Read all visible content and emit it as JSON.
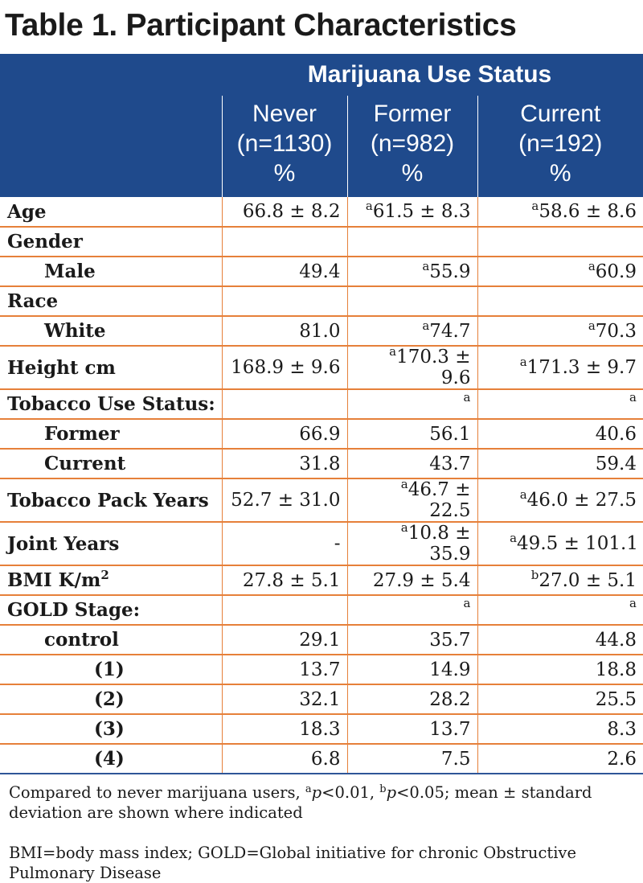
{
  "title": "Table 1. Participant Characteristics",
  "header": {
    "group": "Marijuana Use Status",
    "columns": [
      {
        "name": "Never",
        "n": "(n=1130)",
        "unit": "%"
      },
      {
        "name": "Former",
        "n": "(n=982)",
        "unit": "%"
      },
      {
        "name": "Current",
        "n": "(n=192)",
        "unit": "%"
      }
    ]
  },
  "rows": {
    "age": {
      "label": "Age",
      "never": "66.8 ± 8.2",
      "former_sup": "a",
      "former": "61.5 ± 8.3",
      "current_sup": "a",
      "current": "58.6 ± 8.6"
    },
    "gender": {
      "label": "Gender"
    },
    "male": {
      "label": "Male",
      "never": "49.4",
      "former_sup": "a",
      "former": "55.9",
      "current_sup": "a",
      "current": "60.9"
    },
    "race": {
      "label": "Race"
    },
    "white": {
      "label": "White",
      "never": "81.0",
      "former_sup": "a",
      "former": "74.7",
      "current_sup": "a",
      "current": "70.3"
    },
    "height": {
      "label": "Height cm",
      "never": "168.9 ± 9.6",
      "former_sup": "a",
      "former": "170.3 ± 9.6",
      "current_sup": "a",
      "current": "171.3 ± 9.7"
    },
    "tobacco_status": {
      "label": "Tobacco Use Status:",
      "former_sup": "a",
      "current_sup": "a"
    },
    "tob_former": {
      "label": "Former",
      "never": "66.9",
      "former": "56.1",
      "current": "40.6"
    },
    "tob_current": {
      "label": "Current",
      "never": "31.8",
      "former": "43.7",
      "current": "59.4"
    },
    "pack_years": {
      "label": "Tobacco Pack Years",
      "never": "52.7 ± 31.0",
      "former_sup": "a",
      "former": "46.7 ± 22.5",
      "current_sup": "a",
      "current": "46.0 ± 27.5"
    },
    "joint_years": {
      "label": "Joint Years",
      "never": "-",
      "former_sup": "a",
      "former": "10.8 ± 35.9",
      "current_sup": "a",
      "current": "49.5 ± 101.1"
    },
    "bmi": {
      "label": "BMI K/m",
      "label_sup": "2",
      "never": "27.8 ± 5.1",
      "former": "27.9 ± 5.4",
      "current_sup": "b",
      "current": "27.0 ± 5.1"
    },
    "gold": {
      "label": "GOLD Stage:",
      "former_sup": "a",
      "current_sup": "a"
    },
    "control": {
      "label": "control",
      "never": "29.1",
      "former": "35.7",
      "current": "44.8"
    },
    "g1": {
      "label": "(1)",
      "never": "13.7",
      "former": "14.9",
      "current": "18.8"
    },
    "g2": {
      "label": "(2)",
      "never": "32.1",
      "former": "28.2",
      "current": "25.5"
    },
    "g3": {
      "label": "(3)",
      "never": "18.3",
      "former": "13.7",
      "current": "8.3"
    },
    "g4": {
      "label": "(4)",
      "never": "6.8",
      "former": "7.5",
      "current": "2.6"
    }
  },
  "footnotes": {
    "note1_a": "Compared to never marijuana users, ",
    "note1_sup_a": "a",
    "note1_p1": "p",
    "note1_b": "<0.01, ",
    "note1_sup_b": "b",
    "note1_p2": "p",
    "note1_c": "<0.05; mean ± standard deviation are shown where indicated",
    "note2": "BMI=body mass index; GOLD=Global initiative for chronic Obstructive Pulmonary Disease"
  },
  "colors": {
    "header_bg": "#1f4a8c",
    "rule": "#e6803a",
    "bottom_rule": "#2f5597"
  }
}
